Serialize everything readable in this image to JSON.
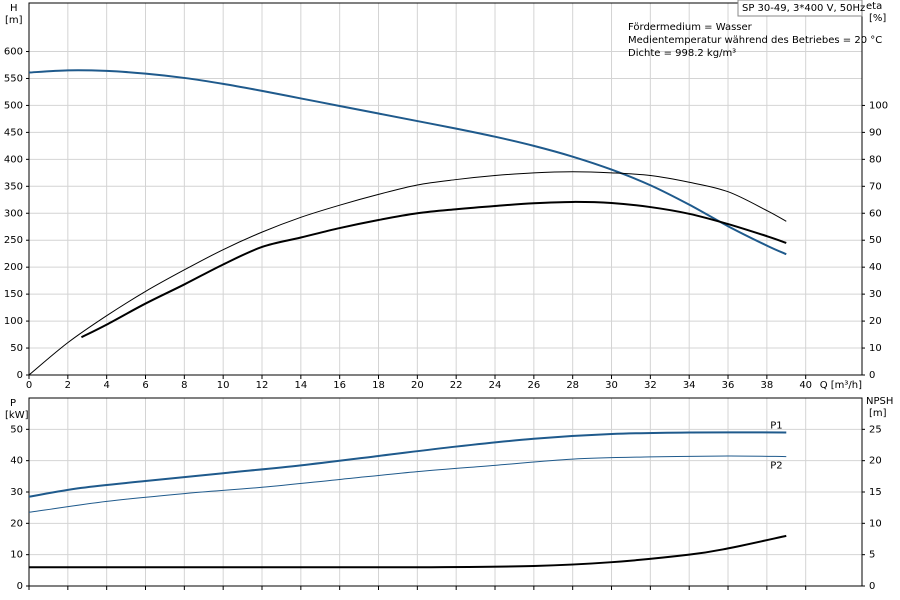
{
  "chart_data": [
    {
      "type": "line",
      "title": "SP 30-49, 3*400 V, 50Hz",
      "annotations": [
        "Fördermedium = Wasser",
        "Medientemperatur während des Betriebes = 20 °C",
        "Dichte = 998.2 kg/m³"
      ],
      "ylabel": "H",
      "yunit": "[m]",
      "y2label": "eta",
      "y2unit": "[%]",
      "xlabel": "Q [m³/h]",
      "xlim": [
        0,
        42.9
      ],
      "xticks": [
        0,
        2,
        4,
        6,
        8,
        10,
        12,
        14,
        16,
        18,
        20,
        22,
        24,
        26,
        28,
        30,
        32,
        34,
        36,
        38,
        40
      ],
      "xtick_labels": true,
      "ylim": [
        0,
        690
      ],
      "yticks": [
        0,
        50,
        100,
        150,
        200,
        250,
        300,
        350,
        400,
        450,
        500,
        550,
        600
      ],
      "y2lim": [
        0,
        138
      ],
      "y2ticks": [
        0,
        10,
        20,
        30,
        40,
        50,
        60,
        70,
        80,
        90,
        100
      ],
      "grid": true,
      "series": [
        {
          "color": "#1f5a8c",
          "line_width": 2,
          "axis": "y",
          "x": [
            0,
            2,
            4,
            6,
            8,
            10,
            12,
            14,
            16,
            18,
            20,
            22,
            24,
            26,
            28,
            30,
            32,
            34,
            36,
            38,
            39
          ],
          "values": [
            561,
            565,
            564,
            559,
            551,
            540,
            527,
            513,
            499,
            485,
            471,
            457,
            442,
            425,
            405,
            381,
            352,
            316,
            276,
            240,
            224
          ]
        },
        {
          "color": "#000000",
          "line_width": 1,
          "axis": "y2",
          "x": [
            0,
            2,
            4,
            6,
            8,
            10,
            12,
            14,
            16,
            18,
            20,
            22,
            24,
            26,
            28,
            30,
            32,
            34,
            36,
            38,
            39
          ],
          "values": [
            0,
            12,
            22,
            31,
            39,
            46.5,
            53,
            58.5,
            63,
            67,
            70.5,
            72.5,
            74,
            75,
            75.4,
            75,
            74,
            71.5,
            68,
            61,
            57
          ]
        },
        {
          "color": "#000000",
          "line_width": 2,
          "axis": "y2",
          "x": [
            2.7,
            4,
            6,
            8,
            10,
            12,
            14,
            16,
            18,
            20,
            22,
            24,
            26,
            28,
            30,
            32,
            34,
            36,
            38,
            39
          ],
          "values": [
            14,
            18.7,
            26.5,
            33.6,
            41,
            47.5,
            51,
            54.5,
            57.5,
            60,
            61.5,
            62.7,
            63.7,
            64.2,
            63.8,
            62.3,
            59.8,
            56,
            51.5,
            49
          ]
        }
      ]
    },
    {
      "type": "line",
      "ylabel": "P",
      "yunit": "[kW]",
      "y2label": "NPSH",
      "y2unit": "[m]",
      "xlim": [
        0,
        42.9
      ],
      "xticks": [
        0,
        2,
        4,
        6,
        8,
        10,
        12,
        14,
        16,
        18,
        20,
        22,
        24,
        26,
        28,
        30,
        32,
        34,
        36,
        38,
        40
      ],
      "xtick_labels": false,
      "ylim": [
        0,
        60
      ],
      "yticks": [
        0,
        10,
        20,
        30,
        40,
        50
      ],
      "y2lim": [
        0,
        30
      ],
      "y2ticks": [
        0,
        5,
        10,
        15,
        20,
        25
      ],
      "grid": true,
      "series": [
        {
          "name": "P1",
          "color": "#1f5a8c",
          "line_width": 2,
          "axis": "y",
          "x": [
            0,
            2.7,
            6,
            10,
            14,
            18,
            22,
            26,
            30,
            34,
            39
          ],
          "values": [
            28.5,
            31.3,
            33.5,
            36,
            38.5,
            41.5,
            44.5,
            47,
            48.5,
            49,
            49
          ]
        },
        {
          "name": "P2",
          "color": "#1f5a8c",
          "line_width": 1,
          "axis": "y",
          "x": [
            0,
            4,
            8,
            12,
            16,
            20,
            24,
            28,
            32,
            36,
            39
          ],
          "values": [
            23.5,
            27,
            29.5,
            31.5,
            34,
            36.5,
            38.5,
            40.5,
            41.2,
            41.5,
            41.3
          ]
        },
        {
          "color": "#000000",
          "line_width": 2,
          "axis": "y2",
          "x": [
            0,
            10,
            20,
            26,
            30,
            34,
            36,
            39
          ],
          "values": [
            3,
            3,
            3,
            3.2,
            3.8,
            5,
            6,
            8
          ]
        }
      ]
    }
  ]
}
